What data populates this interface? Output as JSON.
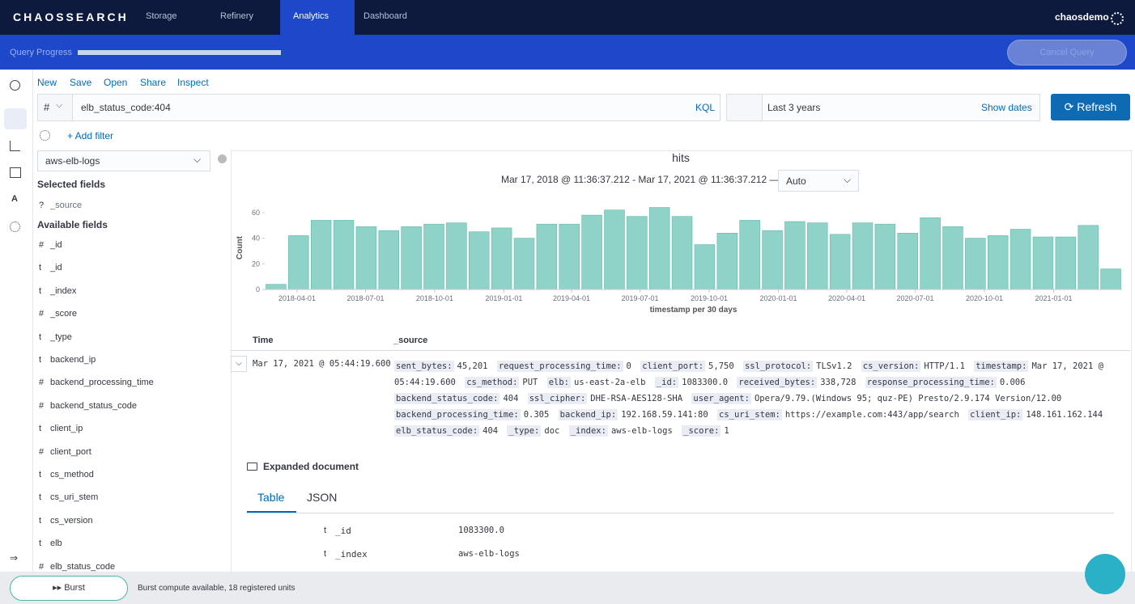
{
  "header": {
    "logo": "CHAOSSEARCH",
    "nav": [
      "Storage",
      "Refinery",
      "Analytics",
      "Dashboard"
    ],
    "active": "Analytics",
    "user": "chaosdemo"
  },
  "progress": {
    "label": "Query Progress",
    "cancel": "Cancel Query"
  },
  "toolbar": [
    "New",
    "Save",
    "Open",
    "Share",
    "Inspect"
  ],
  "query": {
    "type": "#",
    "text": "elb_status_code:404",
    "language": "KQL",
    "date_range": "Last 3 years",
    "show_dates": "Show dates",
    "refresh": "Refresh",
    "add_filter": "+ Add filter"
  },
  "index": "aws-elb-logs",
  "selected_fields": {
    "title": "Selected fields",
    "items": [
      {
        "type": "?",
        "name": "_source"
      }
    ]
  },
  "available_fields": {
    "title": "Available fields",
    "items": [
      {
        "type": "#",
        "name": "_id"
      },
      {
        "type": "t",
        "name": "_id"
      },
      {
        "type": "t",
        "name": "_index"
      },
      {
        "type": "#",
        "name": "_score"
      },
      {
        "type": "t",
        "name": "_type"
      },
      {
        "type": "t",
        "name": "backend_ip"
      },
      {
        "type": "#",
        "name": "backend_processing_time"
      },
      {
        "type": "#",
        "name": "backend_status_code"
      },
      {
        "type": "t",
        "name": "client_ip"
      },
      {
        "type": "#",
        "name": "client_port"
      },
      {
        "type": "t",
        "name": "cs_method"
      },
      {
        "type": "t",
        "name": "cs_uri_stem"
      },
      {
        "type": "t",
        "name": "cs_version"
      },
      {
        "type": "t",
        "name": "elb"
      },
      {
        "type": "#",
        "name": "elb_status_code"
      }
    ]
  },
  "chart_data": {
    "type": "bar",
    "title": "hits",
    "subtitle": "Mar 17, 2018 @ 11:36:37.212 - Mar 17, 2021 @ 11:36:37.212 —",
    "interval": "Auto",
    "y_label": "Count",
    "x_label": "timestamp per 30 days",
    "color": "#8fd3c8",
    "x": [
      "2018-02-17",
      "2018-03-19",
      "2018-04-18",
      "2018-05-18",
      "2018-06-17",
      "2018-07-17",
      "2018-08-16",
      "2018-09-15",
      "2018-10-15",
      "2018-11-14",
      "2018-12-14",
      "2019-01-13",
      "2019-02-12",
      "2019-03-14",
      "2019-04-13",
      "2019-05-13",
      "2019-06-12",
      "2019-07-12",
      "2019-08-11",
      "2019-09-10",
      "2019-10-10",
      "2019-11-09",
      "2019-12-09",
      "2020-01-08",
      "2020-02-07",
      "2020-03-08",
      "2020-04-07",
      "2020-05-07",
      "2020-06-06",
      "2020-07-06",
      "2020-08-05",
      "2020-09-04",
      "2020-10-04",
      "2020-11-03",
      "2020-12-03",
      "2021-01-02",
      "2021-02-01",
      "2021-03-03"
    ],
    "values": [
      4,
      42,
      54,
      54,
      49,
      46,
      49,
      51,
      52,
      45,
      48,
      40,
      51,
      51,
      58,
      62,
      57,
      64,
      57,
      35,
      44,
      54,
      46,
      53,
      52,
      43,
      52,
      51,
      44,
      56,
      49,
      40,
      42,
      47,
      41,
      41,
      50,
      16
    ],
    "xlim": [
      "2018-02-17",
      "2021-04-02"
    ],
    "xticks": [
      "2018-04-01",
      "2018-07-01",
      "2018-10-01",
      "2019-01-01",
      "2019-04-01",
      "2019-07-01",
      "2019-10-01",
      "2020-01-01",
      "2020-04-01",
      "2020-07-01",
      "2020-10-01",
      "2021-01-01"
    ],
    "ylim": [
      0,
      65
    ],
    "yticks": [
      0,
      20,
      40,
      60
    ]
  },
  "documents": {
    "columns": [
      "Time",
      "_source"
    ],
    "time": "Mar 17, 2021 @ 05:44:19.600",
    "source": [
      [
        "sent_bytes:",
        "45,201"
      ],
      [
        "request_processing_time:",
        "0"
      ],
      [
        "client_port:",
        "5,750"
      ],
      [
        "ssl_protocol:",
        "TLSv1.2"
      ],
      [
        "cs_version:",
        "HTTP/1.1"
      ],
      [
        "timestamp:",
        "Mar 17, 2021 @ 05:44:19.600"
      ],
      [
        "cs_method:",
        "PUT"
      ],
      [
        "elb:",
        "us-east-2a-elb"
      ],
      [
        "_id:",
        "1083300.0"
      ],
      [
        "received_bytes:",
        "338,728"
      ],
      [
        "response_processing_time:",
        "0.006"
      ],
      [
        "backend_status_code:",
        "404"
      ],
      [
        "ssl_cipher:",
        "DHE-RSA-AES128-SHA"
      ],
      [
        "user_agent:",
        "Opera/9.79.(Windows 95; quz-PE) Presto/2.9.174 Version/12.00"
      ],
      [
        "backend_processing_time:",
        "0.305"
      ],
      [
        "backend_ip:",
        "192.168.59.141:80"
      ],
      [
        "cs_uri_stem:",
        "https://example.com:443/app/search"
      ],
      [
        "client_ip:",
        "148.161.162.144"
      ],
      [
        "elb_status_code:",
        "404"
      ],
      [
        "_type:",
        "doc"
      ],
      [
        "_index:",
        "aws-elb-logs"
      ],
      [
        "_score:",
        "1"
      ]
    ],
    "expanded_title": "Expanded document",
    "tabs": [
      "Table",
      "JSON"
    ],
    "rows": [
      [
        "t",
        "_id",
        "1083300.0"
      ],
      [
        "t",
        "_index",
        "aws-elb-logs"
      ]
    ]
  },
  "footer": {
    "burst": "Burst",
    "status": "Burst compute available, 18 registered units"
  }
}
